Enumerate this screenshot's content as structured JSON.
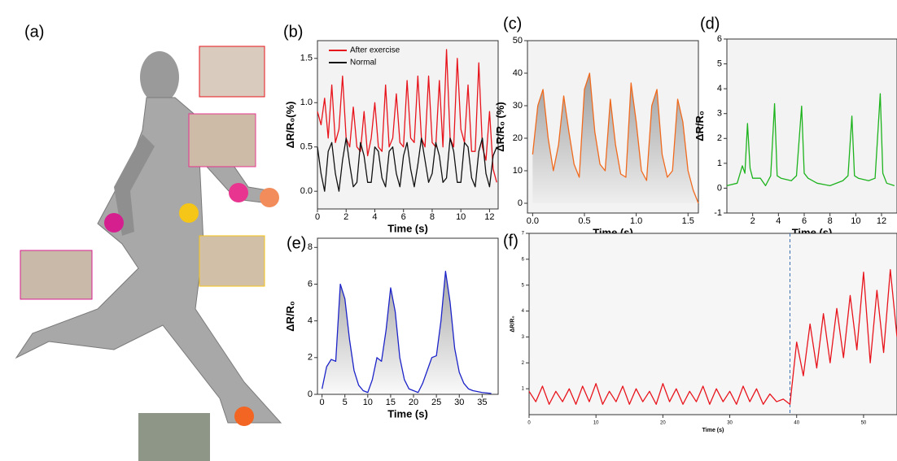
{
  "panel_a": "(a)",
  "chart_data": [
    {
      "type": "line",
      "panel": "(b)",
      "xlabel": "Time (s)",
      "ylabel": "ΔR/R₀(%)",
      "xlim": [
        0,
        12.6
      ],
      "ylim": [
        -0.2,
        1.7
      ],
      "xticks": [
        0,
        2,
        4,
        6,
        8,
        10,
        12
      ],
      "yticks": [
        {
          "value": 0,
          "label": "0.0"
        },
        {
          "value": 0.5,
          "label": "0.5"
        },
        {
          "value": 1,
          "label": "1.0"
        },
        {
          "value": 1.5,
          "label": "1.5"
        }
      ],
      "legend": "upper left",
      "x": [
        0,
        0.25,
        0.5,
        0.75,
        1,
        1.25,
        1.5,
        1.75,
        2,
        2.25,
        2.5,
        2.75,
        3,
        3.25,
        3.5,
        3.75,
        4,
        4.25,
        4.5,
        4.75,
        5,
        5.25,
        5.5,
        5.75,
        6,
        6.25,
        6.5,
        6.75,
        7,
        7.25,
        7.5,
        7.75,
        8,
        8.25,
        8.5,
        8.75,
        9,
        9.25,
        9.5,
        9.75,
        10,
        10.25,
        10.5,
        10.75,
        11,
        11.25,
        11.5,
        11.75,
        12,
        12.25,
        12.5
      ],
      "series": [
        {
          "name": "After exercise",
          "color": "#e8141c",
          "values": [
            0.9,
            0.75,
            1.05,
            0.6,
            1.2,
            0.55,
            0.7,
            1.3,
            0.6,
            0.5,
            0.95,
            0.5,
            0.45,
            0.9,
            0.4,
            0.6,
            1.0,
            0.5,
            0.45,
            1.2,
            0.5,
            0.6,
            1.1,
            0.55,
            0.5,
            1.25,
            0.6,
            0.55,
            1.3,
            0.6,
            0.5,
            1.3,
            0.55,
            0.5,
            1.25,
            0.5,
            1.6,
            0.6,
            0.5,
            1.5,
            0.7,
            0.55,
            1.2,
            0.45,
            0.45,
            1.45,
            0.5,
            0.35,
            0.9,
            0.25,
            0.1
          ]
        },
        {
          "name": "Normal",
          "color": "#111111",
          "values": [
            0.5,
            0.2,
            0.0,
            0.45,
            0.55,
            0.2,
            0.0,
            0.35,
            0.6,
            0.3,
            0.05,
            0.1,
            0.55,
            0.4,
            0.1,
            0.1,
            0.5,
            0.45,
            0.15,
            0.05,
            0.45,
            0.5,
            0.2,
            0.05,
            0.4,
            0.55,
            0.25,
            0.05,
            0.3,
            0.6,
            0.35,
            0.1,
            0.2,
            0.55,
            0.4,
            0.1,
            0.15,
            0.6,
            0.45,
            0.1,
            0.1,
            0.55,
            0.5,
            0.15,
            0.05,
            0.45,
            0.6,
            0.2,
            0.05,
            0.4,
            0.5
          ]
        }
      ]
    },
    {
      "type": "line",
      "panel": "(c)",
      "xlabel": "Time (s)",
      "ylabel": "ΔR/R₀ (%)",
      "xlim": [
        -0.05,
        1.6
      ],
      "ylim": [
        -3,
        50
      ],
      "xticks": [
        {
          "value": 0,
          "label": "0.0"
        },
        {
          "value": 0.5,
          "label": "0.5"
        },
        {
          "value": 1,
          "label": "1.0"
        },
        {
          "value": 1.5,
          "label": "1.5"
        }
      ],
      "yticks": [
        0,
        10,
        20,
        30,
        40,
        50
      ],
      "area": true,
      "x": [
        0,
        0.05,
        0.1,
        0.15,
        0.2,
        0.25,
        0.3,
        0.35,
        0.4,
        0.45,
        0.5,
        0.55,
        0.6,
        0.65,
        0.7,
        0.75,
        0.8,
        0.85,
        0.9,
        0.95,
        1,
        1.05,
        1.1,
        1.15,
        1.2,
        1.25,
        1.3,
        1.35,
        1.4,
        1.45,
        1.5,
        1.55,
        1.6
      ],
      "series": [
        {
          "color": "#f06a1e",
          "values": [
            15,
            30,
            35,
            20,
            10,
            18,
            33,
            22,
            12,
            8,
            35,
            40,
            22,
            12,
            10,
            32,
            18,
            9,
            8,
            37,
            25,
            10,
            7,
            30,
            35,
            15,
            8,
            10,
            32,
            25,
            10,
            4,
            0
          ]
        }
      ]
    },
    {
      "type": "line",
      "panel": "(d)",
      "xlabel": "Time (s)",
      "ylabel": "ΔR/R₀",
      "xlim": [
        0,
        13.2
      ],
      "ylim": [
        -1,
        6
      ],
      "xticks": [
        2,
        4,
        6,
        8,
        10,
        12
      ],
      "yticks": [
        -1,
        0,
        1,
        2,
        3,
        4,
        5,
        6
      ],
      "x": [
        0,
        0.8,
        1.2,
        1.4,
        1.6,
        1.8,
        2.0,
        2.6,
        3.0,
        3.4,
        3.7,
        3.9,
        4.2,
        5.0,
        5.4,
        5.8,
        6.0,
        6.3,
        7.0,
        8.0,
        9.0,
        9.4,
        9.7,
        9.9,
        10.2,
        11.0,
        11.5,
        11.9,
        12.1,
        12.4,
        13
      ],
      "series": [
        {
          "color": "#1db31d",
          "values": [
            0.1,
            0.2,
            0.9,
            0.6,
            2.6,
            0.8,
            0.4,
            0.4,
            0.1,
            0.5,
            3.4,
            0.5,
            0.4,
            0.3,
            0.5,
            3.3,
            0.6,
            0.4,
            0.2,
            0.1,
            0.3,
            0.5,
            2.9,
            0.5,
            0.4,
            0.3,
            0.4,
            3.8,
            0.6,
            0.2,
            0.1
          ]
        }
      ]
    },
    {
      "type": "line",
      "panel": "(e)",
      "xlabel": "Time (s)",
      "ylabel": "ΔR/R₀",
      "xlim": [
        -1,
        38.5
      ],
      "ylim": [
        0,
        8.5
      ],
      "xticks": [
        0,
        5,
        10,
        15,
        20,
        25,
        30,
        35
      ],
      "yticks": [
        0,
        2,
        4,
        6,
        8
      ],
      "area": true,
      "x": [
        0,
        1,
        2,
        3,
        4,
        5,
        6,
        7,
        8,
        9,
        10,
        11,
        12,
        13,
        14,
        15,
        16,
        17,
        18,
        19,
        20,
        21,
        22,
        23,
        24,
        25,
        26,
        27,
        28,
        29,
        30,
        31,
        32,
        33,
        35,
        37
      ],
      "series": [
        {
          "color": "#1c23c8",
          "values": [
            0.3,
            1.5,
            1.9,
            1.8,
            6.0,
            5.2,
            3.0,
            1.3,
            0.5,
            0.2,
            0.1,
            0.8,
            2.0,
            1.8,
            3.5,
            5.8,
            4.5,
            2.0,
            0.8,
            0.3,
            0.2,
            0.1,
            0.6,
            1.3,
            2.0,
            2.1,
            4.0,
            6.7,
            5.0,
            2.5,
            1.2,
            0.6,
            0.3,
            0.2,
            0.1,
            0.05
          ]
        }
      ]
    },
    {
      "type": "line",
      "panel": "(f)",
      "xlabel": "Time (s)",
      "ylabel": "ΔR/R₀",
      "xlim": [
        0,
        55
      ],
      "ylim": [
        0,
        7
      ],
      "xticks": [
        0,
        10,
        20,
        30,
        40,
        50
      ],
      "yticks": [
        1,
        2,
        3,
        4,
        5,
        6,
        7
      ],
      "vline": 39,
      "x": [
        0,
        1,
        2,
        3,
        4,
        5,
        6,
        7,
        8,
        9,
        10,
        11,
        12,
        13,
        14,
        15,
        16,
        17,
        18,
        19,
        20,
        21,
        22,
        23,
        24,
        25,
        26,
        27,
        28,
        29,
        30,
        31,
        32,
        33,
        34,
        35,
        36,
        37,
        38,
        39,
        40,
        41,
        42,
        43,
        44,
        45,
        46,
        47,
        48,
        49,
        50,
        51,
        52,
        53,
        54,
        55
      ],
      "series": [
        {
          "color": "#e8141c",
          "values": [
            0.9,
            0.5,
            1.1,
            0.4,
            0.9,
            0.5,
            1.0,
            0.4,
            1.1,
            0.5,
            1.2,
            0.4,
            0.9,
            0.5,
            1.1,
            0.4,
            1.0,
            0.5,
            0.9,
            0.4,
            1.2,
            0.5,
            1.0,
            0.4,
            0.9,
            0.5,
            1.1,
            0.4,
            1.0,
            0.5,
            0.9,
            0.4,
            1.1,
            0.5,
            1.0,
            0.4,
            0.8,
            0.5,
            0.6,
            0.4,
            2.8,
            1.5,
            3.5,
            1.8,
            3.9,
            2.0,
            4.1,
            2.2,
            4.6,
            2.5,
            5.5,
            2.0,
            4.8,
            2.4,
            5.6,
            3.0
          ]
        }
      ]
    }
  ]
}
